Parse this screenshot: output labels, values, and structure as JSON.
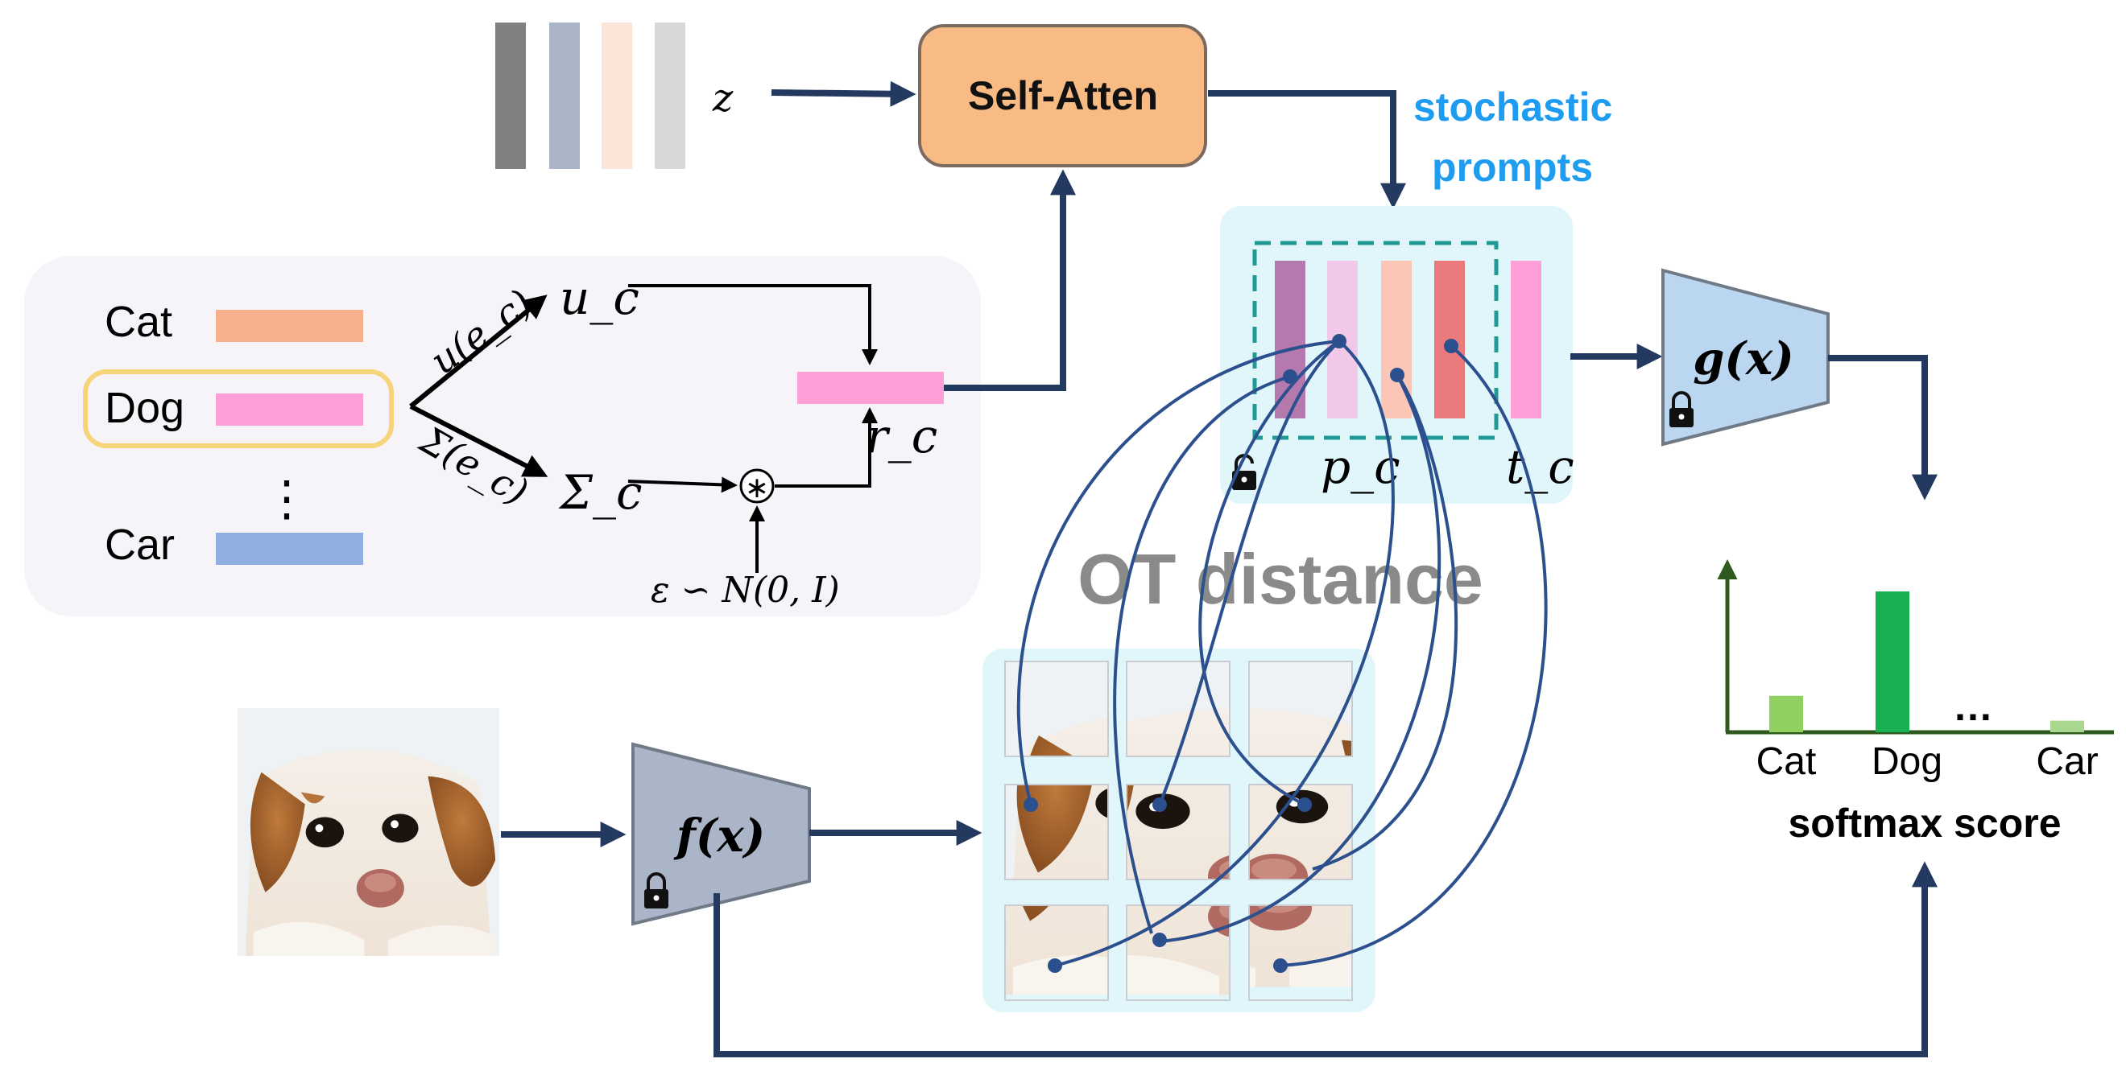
{
  "z_label": "z",
  "self_atten": {
    "label": "Self-Atten",
    "fill": "#f8bb84",
    "stroke": "#7a6a60"
  },
  "stochastic_prompts": {
    "line1": "stochastic",
    "line2": "prompts",
    "color": "#1e9cf0"
  },
  "class_box": {
    "classes": [
      {
        "name": "Cat",
        "color": "#f6b08c"
      },
      {
        "name": "Dog",
        "color": "#ff9fd8"
      },
      {
        "name": "Car",
        "color": "#8fb0e0"
      }
    ],
    "vdots": "⋮",
    "selected_outline": "#f6d47a"
  },
  "math": {
    "u_func": "u(e_c)",
    "u_c": "u_c",
    "sigma_func": "Σ(e_c)",
    "sigma_c": "Σ_c",
    "r_c": "r_c",
    "p_c": "p_c",
    "t_c": "t_c",
    "noise": "ε ∽ N(0, I)",
    "star": "∗"
  },
  "encoders": {
    "g": {
      "label": "g(x)",
      "fill": "#bad6f0"
    },
    "f": {
      "label": "f(x)",
      "fill": "#aab6c8"
    }
  },
  "ot_distance": {
    "label": "OT distance",
    "color": "#8a8a8a"
  },
  "softmax": {
    "title": "softmax score",
    "dots": "…",
    "categories": [
      "Cat",
      "Dog",
      "",
      "Car"
    ],
    "values": [
      0.22,
      0.85,
      0,
      0.07
    ],
    "colors": [
      "#90d060",
      "#18b050",
      "#ffffff",
      "#a8d890"
    ]
  },
  "colors": {
    "arrow_dark": "#23395f",
    "ot_lines": "#2c4f8e",
    "prompt_panel": "#e0f6fb",
    "dashed_box": "#1f9a94",
    "chart_axis": "#2e5a1e",
    "lock": "#111111"
  }
}
